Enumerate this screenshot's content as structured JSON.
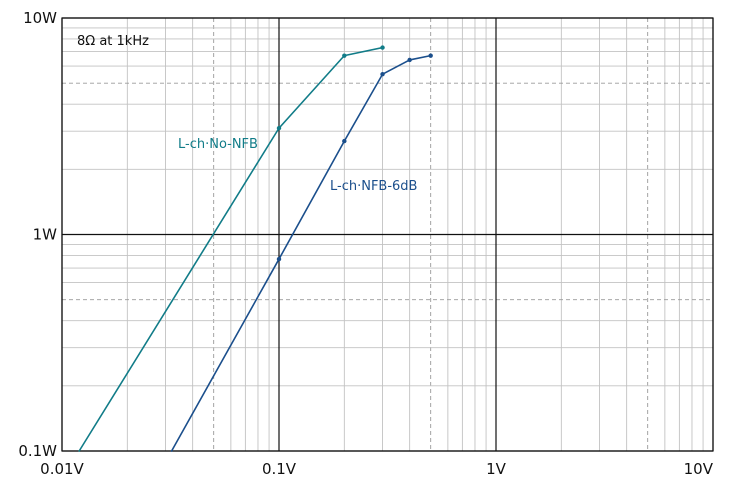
{
  "chart_data": {
    "type": "line",
    "title": "",
    "xlabel": "",
    "ylabel": "",
    "x_scale": "log",
    "y_scale": "log",
    "xlim": [
      0.01,
      10
    ],
    "ylim": [
      0.1,
      10
    ],
    "grid": true,
    "x_ticks": [
      {
        "value": 0.01,
        "label": "0.01V"
      },
      {
        "value": 0.1,
        "label": "0.1V"
      },
      {
        "value": 1,
        "label": "1V"
      },
      {
        "value": 10,
        "label": "10V"
      }
    ],
    "y_ticks": [
      {
        "value": 0.1,
        "label": "0.1W"
      },
      {
        "value": 1,
        "label": "1W"
      },
      {
        "value": 10,
        "label": "10W"
      }
    ],
    "annotation": "8Ω at 1kHz",
    "series": [
      {
        "name": "L-ch·No-NFB",
        "color": "#117c88",
        "points": [
          {
            "x": 0.012,
            "y": 0.1
          },
          {
            "x": 0.1,
            "y": 3.1
          },
          {
            "x": 0.2,
            "y": 6.7
          },
          {
            "x": 0.3,
            "y": 7.3
          }
        ],
        "markers": [
          {
            "x": 0.1,
            "y": 3.1
          },
          {
            "x": 0.2,
            "y": 6.7
          },
          {
            "x": 0.3,
            "y": 7.3
          }
        ]
      },
      {
        "name": "L-ch·NFB-6dB",
        "color": "#1b4f8c",
        "points": [
          {
            "x": 0.032,
            "y": 0.1
          },
          {
            "x": 0.1,
            "y": 0.77
          },
          {
            "x": 0.2,
            "y": 2.7
          },
          {
            "x": 0.3,
            "y": 5.5
          },
          {
            "x": 0.4,
            "y": 6.4
          },
          {
            "x": 0.5,
            "y": 6.7
          }
        ],
        "markers": [
          {
            "x": 0.1,
            "y": 0.77
          },
          {
            "x": 0.2,
            "y": 2.7
          },
          {
            "x": 0.3,
            "y": 5.5
          },
          {
            "x": 0.4,
            "y": 6.4
          },
          {
            "x": 0.5,
            "y": 6.7
          }
        ]
      }
    ]
  }
}
